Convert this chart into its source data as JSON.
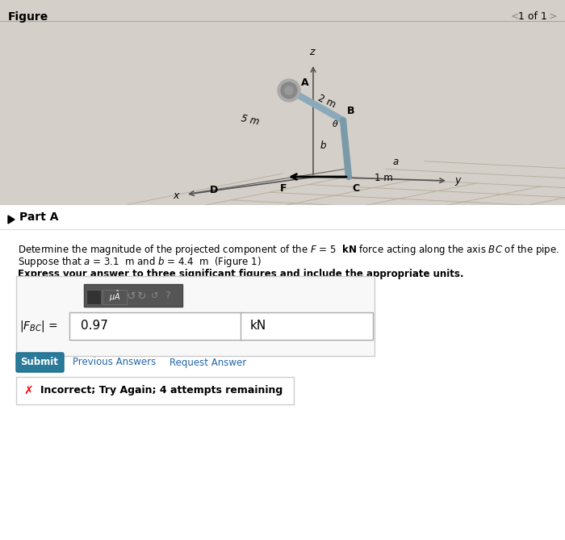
{
  "bg_color": "#d4cfc8",
  "title_text": "Figure",
  "nav_text": "1 of 1",
  "figure_bg": "#ccc8c0",
  "part_a_label": "Part A",
  "problem_line1": "Determine the magnitude of the projected component of the $F$ = 5  kN force acting along the axis $BC$ of the pipe.",
  "problem_line2": "Suppose that $a$ = 3.1  m and $b$ = 4.4  m  (Figure 1)",
  "express_text": "Express your answer to three significant figures and include the appropriate units.",
  "answer_label": "|F\\textsubscript{BC}| =",
  "answer_value": "0.97",
  "answer_unit": "kN",
  "submit_text": "Submit",
  "prev_answers": "Previous Answers",
  "req_answer": "Request Answer",
  "incorrect_text": "Incorrect; Try Again; 4 attempts remaining",
  "dim_2m": "2 m",
  "dim_5m": "5 m",
  "dim_1m": "1 m",
  "label_A": "A",
  "label_B": "B",
  "label_C": "C",
  "label_D": "D",
  "label_F_pt": "F",
  "label_x": "x",
  "label_y": "y",
  "label_z": "z",
  "label_a": "a",
  "label_b": "b",
  "label_theta": "θ"
}
